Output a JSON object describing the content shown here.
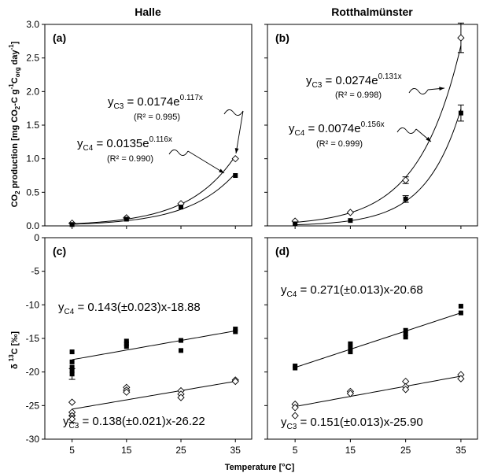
{
  "figure": {
    "col_titles": [
      "Halle",
      "Rotthalmünster"
    ],
    "x_label": "Temperature [°C]",
    "y_label_top": "CO2 production [mg CO2-C g-1Corg day-1]",
    "y_label_bottom": "δ 13C [‰]"
  },
  "chart_data": [
    {
      "type": "scatter",
      "panel": "(a)",
      "site": "Halle",
      "x_ticks": [
        5,
        15,
        25,
        35
      ],
      "xlim": [
        0,
        38
      ],
      "ylim": [
        0,
        3.0
      ],
      "y_ticks": [
        0.0,
        0.5,
        1.0,
        1.5,
        2.0,
        2.5,
        3.0
      ],
      "y_tick_labels": [
        "0.0",
        "0.5",
        "1.0",
        "1.5",
        "2.0",
        "2.5",
        "3.0"
      ],
      "series": [
        {
          "name": "C3",
          "marker": "diamond",
          "x": [
            5,
            15,
            25,
            35
          ],
          "y": [
            0.04,
            0.12,
            0.33,
            1.0
          ],
          "err": [
            0,
            0,
            0,
            0
          ],
          "fit": {
            "kind": "exp",
            "a": 0.0174,
            "b": 0.117
          }
        },
        {
          "name": "C4",
          "marker": "square",
          "x": [
            5,
            15,
            25,
            35
          ],
          "y": [
            0.02,
            0.1,
            0.28,
            0.75
          ],
          "err": [
            0,
            0,
            0,
            0
          ],
          "fit": {
            "kind": "exp",
            "a": 0.0135,
            "b": 0.116
          }
        }
      ],
      "annotations": [
        {
          "id": "c3",
          "prefix": "y",
          "sub": "C3",
          "eq": " = 0.0174e",
          "sup": "0.117x",
          "r2": "(R² = 0.995)"
        },
        {
          "id": "c4",
          "prefix": "y",
          "sub": "C4",
          "eq": " = 0.0135e",
          "sup": "0.116x",
          "r2": "(R² = 0.990)"
        }
      ]
    },
    {
      "type": "scatter",
      "panel": "(b)",
      "site": "Rotthalmünster",
      "x_ticks": [
        5,
        15,
        25,
        35
      ],
      "xlim": [
        0,
        38
      ],
      "ylim": [
        0,
        3.0
      ],
      "y_ticks": [
        0.0,
        0.5,
        1.0,
        1.5,
        2.0,
        2.5,
        3.0
      ],
      "series": [
        {
          "name": "C3",
          "marker": "diamond",
          "x": [
            5,
            15,
            25,
            35
          ],
          "y": [
            0.07,
            0.2,
            0.68,
            2.8
          ],
          "err": [
            0,
            0,
            0.05,
            0.22
          ],
          "fit": {
            "kind": "exp",
            "a": 0.0274,
            "b": 0.131
          }
        },
        {
          "name": "C4",
          "marker": "square",
          "x": [
            5,
            15,
            25,
            35
          ],
          "y": [
            0.03,
            0.08,
            0.4,
            1.68
          ],
          "err": [
            0,
            0,
            0.05,
            0.12
          ],
          "fit": {
            "kind": "exp",
            "a": 0.0074,
            "b": 0.156
          }
        }
      ],
      "annotations": [
        {
          "id": "c3",
          "prefix": "y",
          "sub": "C3",
          "eq": " = 0.0274e",
          "sup": "0.131x",
          "r2": "(R² = 0.998)"
        },
        {
          "id": "c4",
          "prefix": "y",
          "sub": "C4",
          "eq": " = 0.0074e",
          "sup": "0.156x",
          "r2": "(R² = 0.999)"
        }
      ]
    },
    {
      "type": "scatter",
      "panel": "(c)",
      "site": "Halle",
      "x_ticks": [
        5,
        15,
        25,
        35
      ],
      "x_tick_labels": [
        "5",
        "15",
        "25",
        "35"
      ],
      "xlim": [
        0,
        38
      ],
      "ylim": [
        -30,
        0
      ],
      "y_ticks": [
        0,
        -5,
        -10,
        -15,
        -20,
        -25,
        -30
      ],
      "y_tick_labels": [
        "0",
        "-5",
        "-10",
        "-15",
        "-20",
        "-25",
        "-30"
      ],
      "series": [
        {
          "name": "C4",
          "marker": "square",
          "x": [
            5,
            5,
            5,
            5,
            5,
            15,
            15,
            15,
            25,
            25,
            35,
            35
          ],
          "y": [
            -17.0,
            -18.5,
            -19.3,
            -19.8,
            -20.3,
            -15.4,
            -15.8,
            -16.2,
            -15.3,
            -16.8,
            -13.6,
            -14.0
          ],
          "err": [
            0,
            0,
            0,
            0,
            0.8,
            0,
            0,
            0,
            0,
            0,
            0,
            0
          ],
          "fit": {
            "kind": "lin",
            "m": 0.143,
            "c": -18.88
          }
        },
        {
          "name": "C3",
          "marker": "diamond",
          "x": [
            5,
            5,
            5,
            5,
            15,
            15,
            15,
            25,
            25,
            25,
            35,
            35
          ],
          "y": [
            -24.5,
            -26.0,
            -26.5,
            -27.0,
            -22.3,
            -22.7,
            -23.0,
            -22.8,
            -23.3,
            -23.8,
            -21.2,
            -21.4
          ],
          "err": [
            0,
            0,
            0,
            0.5,
            0,
            0,
            0,
            0,
            0,
            0,
            0,
            0
          ],
          "fit": {
            "kind": "lin",
            "m": 0.138,
            "c": -26.22
          }
        }
      ],
      "annotations": [
        {
          "id": "c4",
          "prefix": "y",
          "sub": "C4",
          "eq": " = 0.143(±0.023)x-18.88"
        },
        {
          "id": "c3",
          "prefix": "y",
          "sub": "C3",
          "eq": " = 0.138(±0.021)x-26.22"
        }
      ]
    },
    {
      "type": "scatter",
      "panel": "(d)",
      "site": "Rotthalmünster",
      "x_ticks": [
        5,
        15,
        25,
        35
      ],
      "x_tick_labels": [
        "5",
        "15",
        "25",
        "35"
      ],
      "xlim": [
        0,
        38
      ],
      "ylim": [
        -30,
        0
      ],
      "y_ticks": [
        0,
        -5,
        -10,
        -15,
        -20,
        -25,
        -30
      ],
      "series": [
        {
          "name": "C4",
          "marker": "square",
          "x": [
            5,
            5,
            15,
            15,
            15,
            25,
            25,
            25,
            35,
            35
          ],
          "y": [
            -19.1,
            -19.4,
            -15.8,
            -16.4,
            -17.0,
            -13.8,
            -14.3,
            -14.8,
            -10.2,
            -11.2
          ],
          "err": [
            0,
            0,
            0,
            0,
            0,
            0,
            0,
            0,
            0,
            0
          ],
          "fit": {
            "kind": "lin",
            "m": 0.271,
            "c": -20.68
          }
        },
        {
          "name": "C3",
          "marker": "diamond",
          "x": [
            5,
            5,
            5,
            15,
            15,
            25,
            25,
            25,
            35,
            35
          ],
          "y": [
            -24.8,
            -25.3,
            -26.5,
            -22.9,
            -23.2,
            -21.4,
            -22.2,
            -22.6,
            -20.4,
            -21.0
          ],
          "err": [
            0,
            0,
            0,
            0,
            0,
            0,
            0,
            0,
            0,
            0
          ],
          "fit": {
            "kind": "lin",
            "m": 0.151,
            "c": -25.9
          }
        }
      ],
      "annotations": [
        {
          "id": "c4",
          "prefix": "y",
          "sub": "C4",
          "eq": " = 0.271(±0.013)x-20.68"
        },
        {
          "id": "c3",
          "prefix": "y",
          "sub": "C3",
          "eq": " = 0.151(±0.013)x-25.90"
        }
      ]
    }
  ]
}
